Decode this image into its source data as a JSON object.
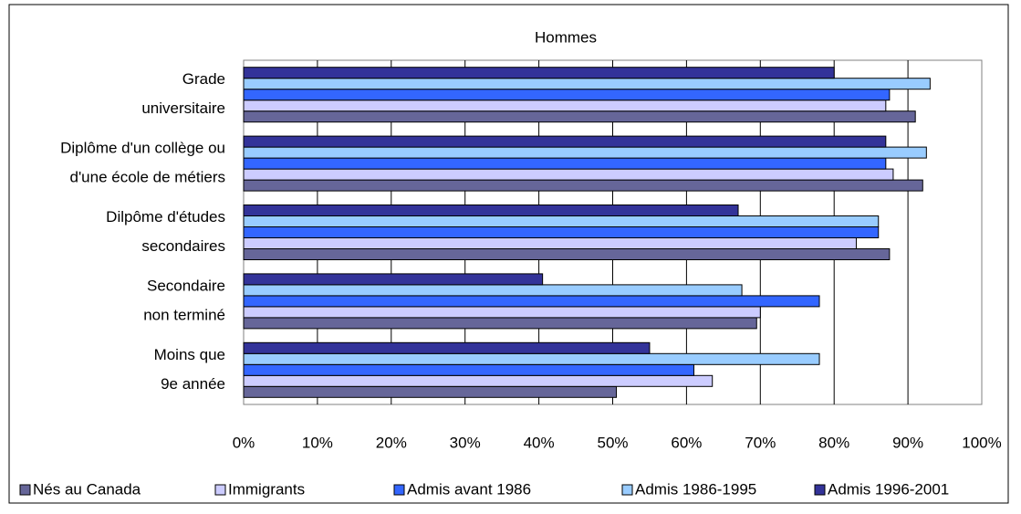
{
  "chart_data": {
    "type": "bar",
    "orientation": "horizontal",
    "title": "Hommes",
    "categories": [
      [
        "Grade",
        "universitaire"
      ],
      [
        "Diplôme d'un collège ou",
        "d'une école de métiers"
      ],
      [
        "Dilpôme d'études",
        "secondaires"
      ],
      [
        "Secondaire",
        "non terminé"
      ],
      [
        "Moins que",
        "9e année"
      ]
    ],
    "series": [
      {
        "name": "Nés au Canada",
        "color": "#666699",
        "values": [
          91,
          92,
          87.5,
          69.5,
          50.5
        ]
      },
      {
        "name": "Immigrants",
        "color": "#ccccff",
        "values": [
          87,
          88,
          83,
          70,
          63.5
        ]
      },
      {
        "name": "Admis avant 1986",
        "color": "#3366ff",
        "values": [
          87.5,
          87,
          86,
          78,
          61
        ]
      },
      {
        "name": "Admis 1986-1995",
        "color": "#99ccff",
        "values": [
          93,
          92.5,
          86,
          67.5,
          78
        ]
      },
      {
        "name": "Admis 1996-2001",
        "color": "#333399",
        "values": [
          80,
          87,
          67,
          40.5,
          55
        ]
      }
    ],
    "xlim": [
      0,
      100
    ],
    "xticks": [
      {
        "value": 0,
        "label": "0%"
      },
      {
        "value": 10,
        "label": "10%"
      },
      {
        "value": 20,
        "label": "20%"
      },
      {
        "value": 30,
        "label": "30%"
      },
      {
        "value": 40,
        "label": "40%"
      },
      {
        "value": 50,
        "label": "50%"
      },
      {
        "value": 60,
        "label": "60%"
      },
      {
        "value": 70,
        "label": "70%"
      },
      {
        "value": 80,
        "label": "80%"
      },
      {
        "value": 90,
        "label": "90%"
      },
      {
        "value": 100,
        "label": "100%"
      }
    ],
    "grid": true,
    "legend": "bottom"
  }
}
